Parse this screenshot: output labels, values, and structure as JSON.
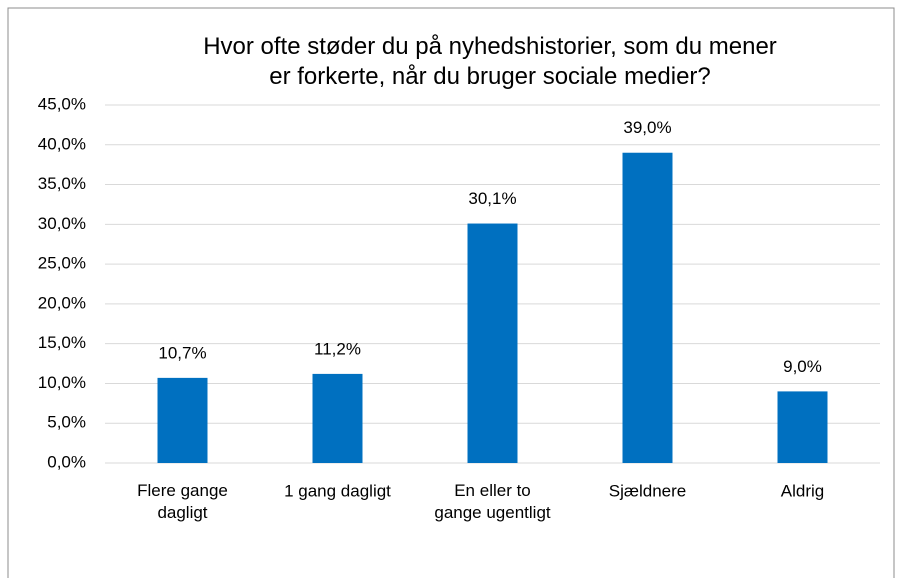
{
  "chart_data": {
    "type": "bar",
    "title": "Hvor ofte støder du på nyhedshistorier, som du mener\ner forkerte, når du bruger sociale medier?",
    "categories": [
      "Flere gange\ndagligt",
      "1 gang dagligt",
      "En eller to\ngange ugentligt",
      "Sjældnere",
      "Aldrig"
    ],
    "values": [
      10.7,
      11.2,
      30.1,
      39.0,
      9.0
    ],
    "value_labels": [
      "10,7%",
      "11,2%",
      "30,1%",
      "39,0%",
      "9,0%"
    ],
    "color": "#0070c0",
    "ylim": [
      0,
      45
    ],
    "yticks": [
      {
        "value": 0,
        "label": "0,0%"
      },
      {
        "value": 5,
        "label": "5,0%"
      },
      {
        "value": 10,
        "label": "10,0%"
      },
      {
        "value": 15,
        "label": "15,0%"
      },
      {
        "value": 20,
        "label": "20,0%"
      },
      {
        "value": 25,
        "label": "25,0%"
      },
      {
        "value": 30,
        "label": "30,0%"
      },
      {
        "value": 35,
        "label": "35,0%"
      },
      {
        "value": 40,
        "label": "40,0%"
      },
      {
        "value": 45,
        "label": "45,0%"
      }
    ],
    "grid": true
  }
}
